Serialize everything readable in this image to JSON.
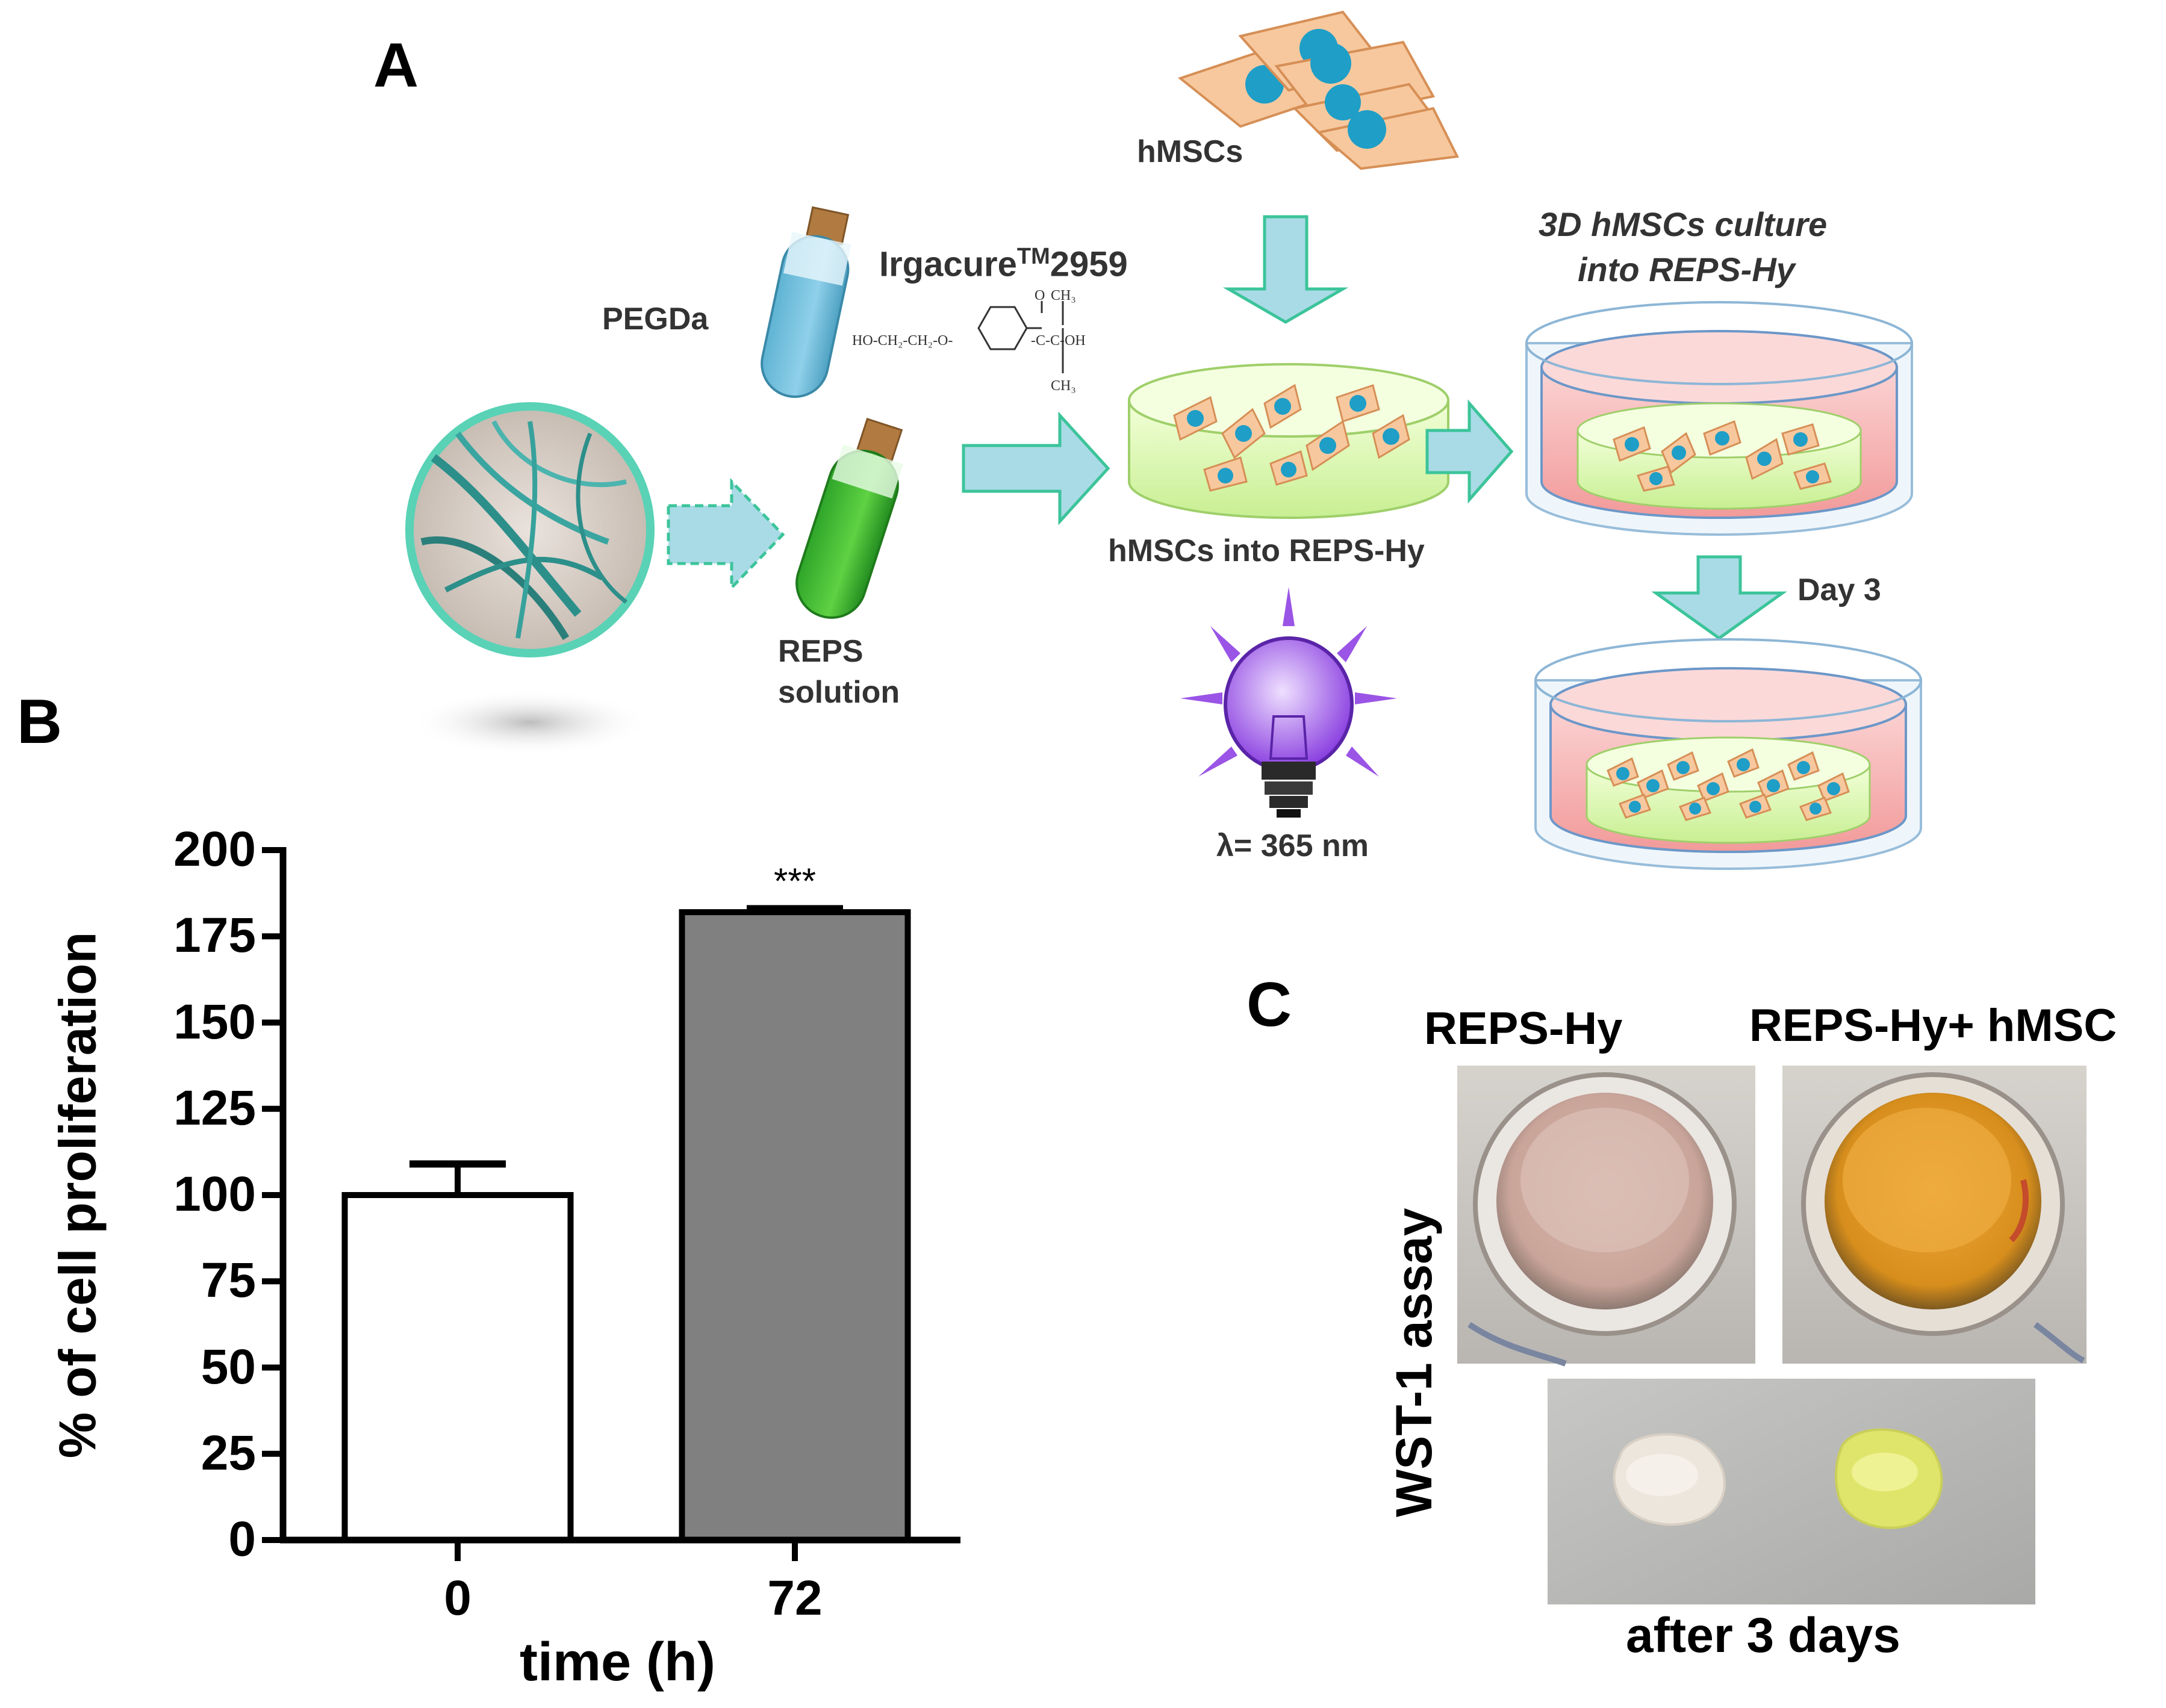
{
  "panels": {
    "a": "A",
    "b": "B",
    "c": "C"
  },
  "diagram_a": {
    "cells_label": "hMSCs",
    "pegda_label": "PEGDa",
    "photoinitiator_name": "Irgacure",
    "photoinitiator_sup": "TM",
    "photoinitiator_num": "2959",
    "formula": {
      "main": "HO-CH₂-CH₂-O-",
      "co": "-C-C-OH",
      "o": "O",
      "ch3_top": "CH₃",
      "ch3_bottom": "CH₃"
    },
    "reps_line1": "REPS",
    "reps_line2": "solution",
    "hydrogel_label": "hMSCs into REPS-Hy",
    "culture_line1": "3D hMSCs culture",
    "culture_line2": "into REPS-Hy",
    "day_label": "Day 3",
    "uv_label": "λ= 365 nm"
  },
  "chart_data": {
    "type": "bar",
    "categories": [
      "0",
      "72"
    ],
    "values": [
      100,
      182
    ],
    "errors": [
      9,
      1
    ],
    "ylabel": "% of cell proliferation",
    "xlabel": "time (h)",
    "ylim": [
      0,
      200
    ],
    "yticks": [
      0,
      25,
      50,
      75,
      100,
      125,
      150,
      175,
      200
    ],
    "significance": "***",
    "bar_colors": [
      "#ffffff",
      "#808080"
    ]
  },
  "panel_c": {
    "label_left": "REPS-Hy",
    "label_right": "REPS-Hy+ hMSC",
    "side_label": "WST-1 assay",
    "bottom_label": "after 3 days"
  }
}
